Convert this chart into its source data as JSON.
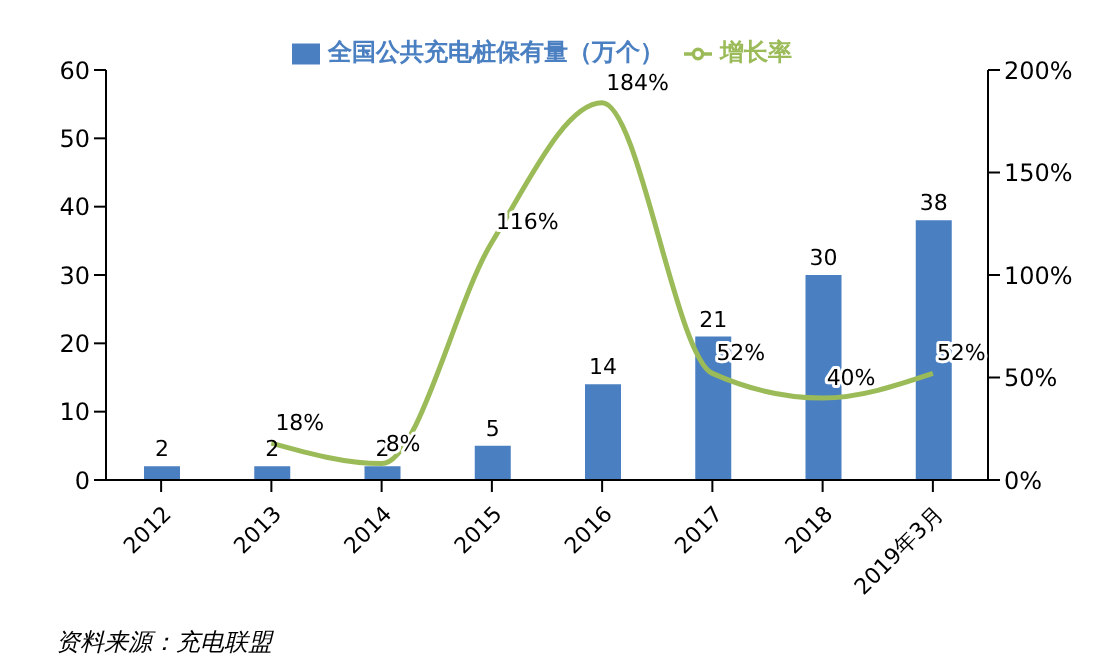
{
  "chart_data": {
    "type": "bar",
    "categories": [
      "2012",
      "2013",
      "2014",
      "2015",
      "2016",
      "2017",
      "2018",
      "2019年3月"
    ],
    "series": [
      {
        "name": "全国公共充电桩保有量（万个）",
        "color": "#4a7fc1",
        "values": [
          2,
          2,
          2,
          5,
          14,
          21,
          30,
          38
        ],
        "value_labels": [
          "2",
          "2",
          "2",
          "5",
          "14",
          "21",
          "30",
          "38"
        ]
      },
      {
        "name": "增长率",
        "type": "line",
        "axis": "y2",
        "color": "#9bbb59",
        "values": [
          null,
          18,
          8,
          116,
          184,
          52,
          40,
          52
        ],
        "value_labels": [
          null,
          "18%",
          "8%",
          "116%",
          "184%",
          "52%",
          "40%",
          "52%"
        ]
      }
    ],
    "ylim": [
      0,
      60
    ],
    "yticks": [
      0,
      10,
      20,
      30,
      40,
      50,
      60
    ],
    "y2lim": [
      0,
      200
    ],
    "y2ticks": [
      {
        "value": 0,
        "label": "0%"
      },
      {
        "value": 50,
        "label": "50%"
      },
      {
        "value": 100,
        "label": "100%"
      },
      {
        "value": 150,
        "label": "150%"
      },
      {
        "value": 200,
        "label": "200%"
      }
    ],
    "grid": false,
    "legend": "top",
    "marker": "none",
    "line_style": "solid",
    "annotations": [
      "资料来源：充电联盟"
    ]
  }
}
